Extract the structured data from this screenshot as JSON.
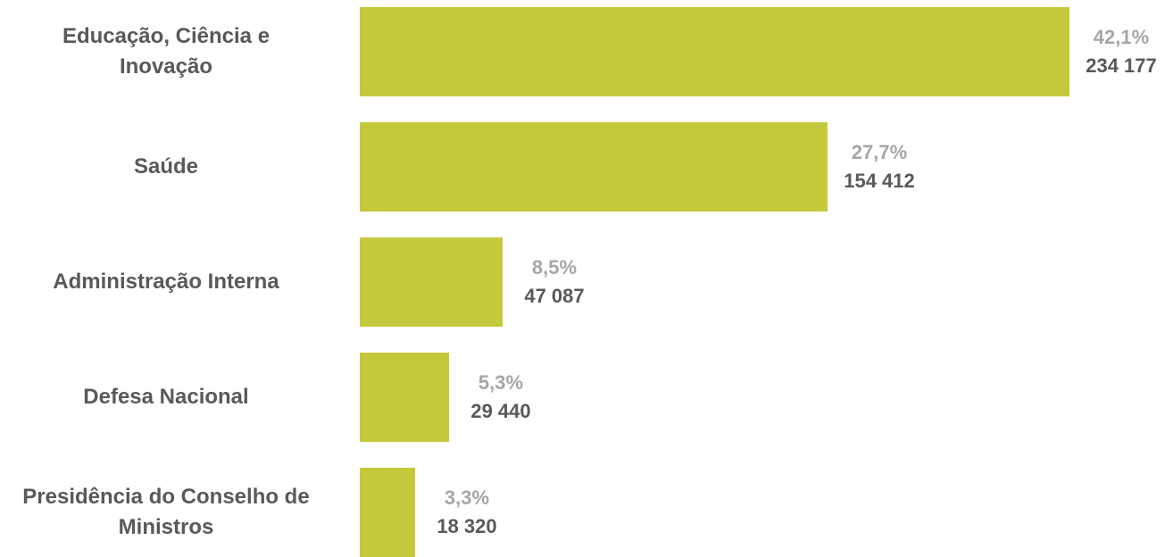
{
  "colors": {
    "bar": "#c4c93b",
    "percent_label": "#a6a6a6",
    "text": "#595959"
  },
  "chart_data": {
    "type": "bar",
    "orientation": "horizontal",
    "categories": [
      "Educação, Ciência e Inovação",
      "Saúde",
      "Administração Interna",
      "Defesa Nacional",
      "Presidência do Conselho de Ministros"
    ],
    "values": [
      234177,
      154412,
      47087,
      29440,
      18320
    ],
    "percent_labels": [
      "42,1%",
      "27,7%",
      "8,5%",
      "5,3%",
      "3,3%"
    ],
    "value_labels": [
      "234 177",
      "154 412",
      "47 087",
      "29 440",
      "18 320"
    ],
    "title": "",
    "xlabel": "",
    "ylabel": "",
    "xlim": [
      0,
      234177
    ],
    "grid": false,
    "legend": false
  }
}
